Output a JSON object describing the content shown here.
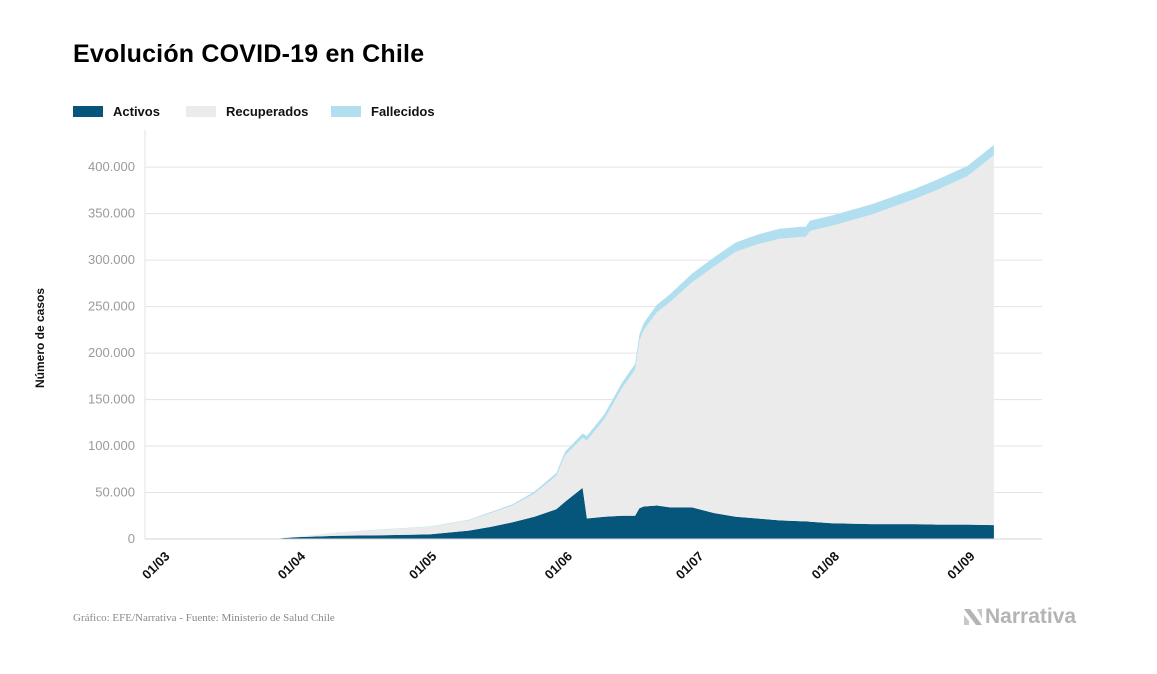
{
  "title": "Evolución COVID-19 en Chile",
  "legend": [
    {
      "label": "Activos",
      "color": "#06557a"
    },
    {
      "label": "Recuperados",
      "color": "#ebebeb"
    },
    {
      "label": "Fallecidos",
      "color": "#b1dff0"
    }
  ],
  "source": "Gráfico: EFE/Narrativa - Fuente: Ministerio de Salud Chile",
  "logo_text": "Narrativa",
  "chart_data": {
    "type": "area",
    "stacked": true,
    "title": "Evolución COVID-19 en Chile",
    "ylabel": "Número de casos",
    "xlabel": "",
    "ylim": [
      0,
      440000
    ],
    "y_ticks": [
      0,
      50000,
      100000,
      150000,
      200000,
      250000,
      300000,
      350000,
      400000
    ],
    "y_tick_labels": [
      "0",
      "50.000",
      "100.000",
      "150.000",
      "200.000",
      "250.000",
      "300.000",
      "350.000",
      "400.000"
    ],
    "x_tick_labels": [
      "01/03",
      "01/04",
      "01/05",
      "01/06",
      "01/07",
      "01/08",
      "01/09"
    ],
    "x_ticks": [
      "2020-03-01",
      "2020-04-01",
      "2020-05-01",
      "2020-06-01",
      "2020-07-01",
      "2020-08-01",
      "2020-09-01"
    ],
    "grid": true,
    "legend_position": "top-left",
    "x": [
      "2020-03-28",
      "2020-04-01",
      "2020-04-10",
      "2020-04-20",
      "2020-05-01",
      "2020-05-10",
      "2020-05-15",
      "2020-05-20",
      "2020-05-25",
      "2020-05-30",
      "2020-06-01",
      "2020-06-05",
      "2020-06-06",
      "2020-06-10",
      "2020-06-14",
      "2020-06-17",
      "2020-06-18",
      "2020-06-19",
      "2020-06-22",
      "2020-06-25",
      "2020-06-30",
      "2020-07-05",
      "2020-07-10",
      "2020-07-15",
      "2020-07-20",
      "2020-07-25",
      "2020-07-26",
      "2020-07-27",
      "2020-08-01",
      "2020-08-10",
      "2020-08-20",
      "2020-08-25",
      "2020-09-01",
      "2020-09-07"
    ],
    "series": [
      {
        "name": "Activos",
        "values": [
          800,
          2000,
          3500,
          4000,
          5000,
          9000,
          13000,
          18000,
          24000,
          32000,
          40000,
          55000,
          22000,
          24000,
          25000,
          25000,
          33000,
          35000,
          36000,
          34000,
          34000,
          28000,
          24000,
          22000,
          20000,
          19000,
          19000,
          18500,
          17000,
          16000,
          16000,
          15500,
          15500,
          15000
        ]
      },
      {
        "name": "Recuperados",
        "values": [
          100,
          300,
          3500,
          6000,
          8000,
          11000,
          15000,
          18000,
          25000,
          36000,
          50000,
          54000,
          84000,
          105000,
          137000,
          157000,
          180000,
          190000,
          208000,
          221000,
          242000,
          265000,
          285000,
          295000,
          303000,
          306000,
          306000,
          313000,
          320000,
          333000,
          350000,
          360000,
          375000,
          398000
        ]
      },
      {
        "name": "Fallecidos",
        "values": [
          20,
          50,
          150,
          300,
          500,
          800,
          1000,
          1400,
          2000,
          3000,
          4000,
          4500,
          4800,
          5300,
          6000,
          6500,
          7000,
          7400,
          8000,
          8500,
          9500,
          9800,
          10000,
          10500,
          10700,
          10900,
          11000,
          11000,
          11000,
          11000,
          10700,
          10900,
          10900,
          11000
        ]
      }
    ]
  }
}
